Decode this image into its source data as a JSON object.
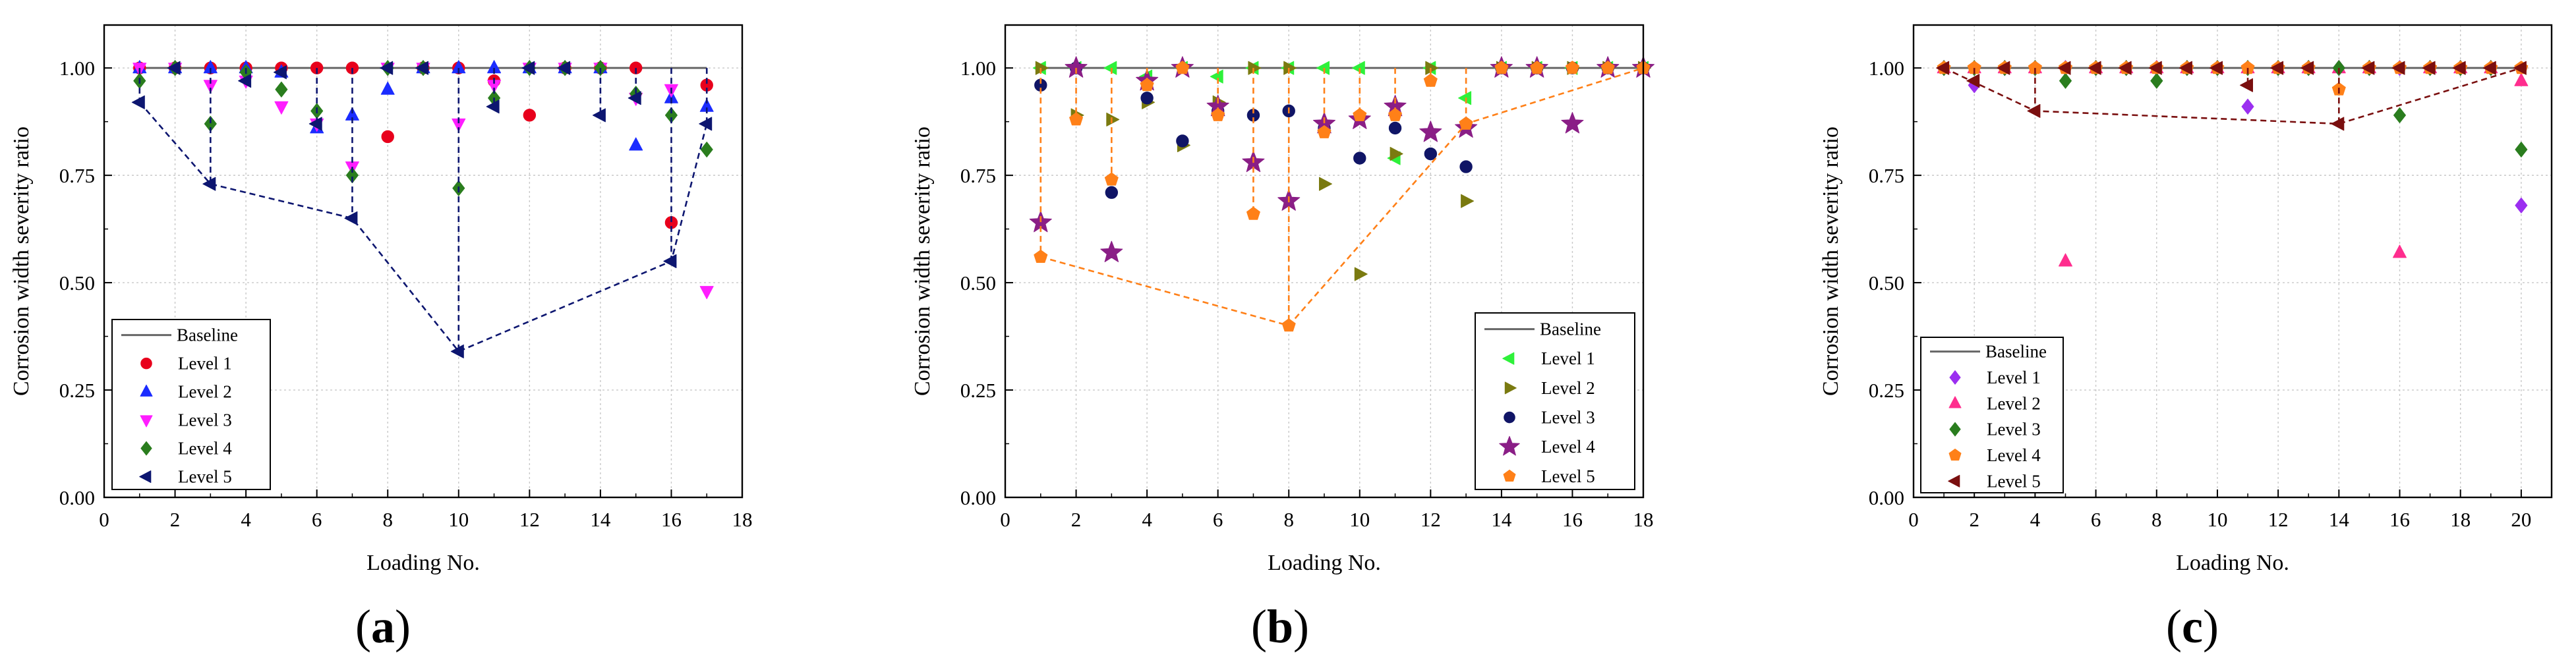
{
  "figure": {
    "panels": [
      "a",
      "b",
      "c"
    ]
  },
  "chart_data": [
    {
      "panel": "a",
      "type": "scatter",
      "xlabel": "Loading No.",
      "ylabel": "Corrosion width severity ratio",
      "xlim": [
        0,
        18
      ],
      "ylim": [
        0,
        1.1
      ],
      "xticks": [
        0,
        2,
        4,
        6,
        8,
        10,
        12,
        14,
        16,
        18
      ],
      "yticks": [
        0.0,
        0.25,
        0.5,
        0.75,
        1.0
      ],
      "grid": true,
      "legend_position": "bottom-left",
      "baseline": {
        "name": "Baseline",
        "value": 1.0,
        "x": [
          1,
          17
        ]
      },
      "series": [
        {
          "name": "Level 1",
          "marker": "circle",
          "color": "#e8001c",
          "dashed_drop": false,
          "x": [
            1,
            2,
            3,
            4,
            5,
            6,
            7,
            8,
            9,
            10,
            11,
            12,
            13,
            14,
            15,
            16,
            17
          ],
          "y": [
            1.0,
            1.0,
            1.0,
            1.0,
            1.0,
            1.0,
            1.0,
            0.84,
            1.0,
            1.0,
            0.97,
            0.89,
            1.0,
            1.0,
            1.0,
            0.64,
            0.96
          ]
        },
        {
          "name": "Level 2",
          "marker": "triangle-up",
          "color": "#1b2cff",
          "dashed_drop": false,
          "x": [
            1,
            2,
            3,
            4,
            5,
            6,
            7,
            8,
            9,
            10,
            11,
            12,
            13,
            14,
            15,
            16,
            17
          ],
          "y": [
            1.0,
            1.0,
            1.0,
            1.0,
            0.99,
            0.86,
            0.89,
            0.95,
            1.0,
            1.0,
            1.0,
            1.0,
            1.0,
            1.0,
            0.82,
            0.93,
            0.91
          ]
        },
        {
          "name": "Level 3",
          "marker": "triangle-down",
          "color": "#ff1dff",
          "dashed_drop": false,
          "x": [
            1,
            2,
            3,
            4,
            5,
            6,
            7,
            8,
            9,
            10,
            11,
            12,
            13,
            14,
            15,
            16,
            17
          ],
          "y": [
            1.0,
            1.0,
            0.96,
            0.97,
            0.91,
            0.87,
            0.77,
            1.0,
            1.0,
            0.87,
            0.96,
            1.0,
            1.0,
            1.0,
            0.93,
            0.95,
            0.48
          ]
        },
        {
          "name": "Level 4",
          "marker": "diamond",
          "color": "#2a7d1e",
          "dashed_drop": false,
          "x": [
            1,
            2,
            3,
            4,
            5,
            6,
            7,
            8,
            9,
            10,
            11,
            12,
            13,
            14,
            15,
            16,
            17
          ],
          "y": [
            0.97,
            1.0,
            0.87,
            0.99,
            0.95,
            0.9,
            0.75,
            1.0,
            1.0,
            0.72,
            0.93,
            1.0,
            1.0,
            1.0,
            0.94,
            0.89,
            0.81
          ]
        },
        {
          "name": "Level 5",
          "marker": "triangle-left",
          "color": "#0d1670",
          "dashed_drop": true,
          "x": [
            1,
            2,
            3,
            4,
            5,
            6,
            7,
            8,
            9,
            10,
            11,
            12,
            13,
            14,
            15,
            16,
            17
          ],
          "y": [
            0.92,
            1.0,
            0.73,
            0.97,
            0.99,
            0.87,
            0.65,
            1.0,
            1.0,
            0.34,
            0.91,
            1.0,
            1.0,
            0.89,
            0.93,
            0.55,
            0.87
          ],
          "envelope_x": [
            1,
            3,
            7,
            10,
            16,
            17
          ],
          "envelope_y": [
            0.92,
            0.73,
            0.65,
            0.34,
            0.55,
            0.87
          ]
        }
      ]
    },
    {
      "panel": "b",
      "type": "scatter",
      "xlabel": "Loading No.",
      "ylabel": "Corrosion width severity ratio",
      "xlim": [
        0,
        18
      ],
      "ylim": [
        0,
        1.1
      ],
      "xticks": [
        0,
        2,
        4,
        6,
        8,
        10,
        12,
        14,
        16,
        18
      ],
      "yticks": [
        0.0,
        0.25,
        0.5,
        0.75,
        1.0
      ],
      "grid": true,
      "legend_position": "bottom-right",
      "baseline": {
        "name": "Baseline",
        "value": 1.0,
        "x": [
          1,
          18
        ]
      },
      "series": [
        {
          "name": "Level 1",
          "marker": "triangle-left",
          "color": "#2ef13a",
          "dashed_drop": false,
          "x": [
            1,
            2,
            3,
            4,
            5,
            6,
            7,
            8,
            9,
            10,
            11,
            12,
            13,
            14,
            15,
            16,
            17,
            18
          ],
          "y": [
            1.0,
            1.0,
            1.0,
            0.98,
            1.0,
            0.98,
            1.0,
            1.0,
            1.0,
            1.0,
            0.79,
            1.0,
            0.93,
            1.0,
            1.0,
            1.0,
            1.0,
            1.0
          ]
        },
        {
          "name": "Level 2",
          "marker": "triangle-right",
          "color": "#7a7a10",
          "dashed_drop": false,
          "x": [
            1,
            2,
            3,
            4,
            5,
            6,
            7,
            8,
            9,
            10,
            11,
            12,
            13,
            14,
            15,
            16,
            17,
            18
          ],
          "y": [
            1.0,
            0.89,
            0.88,
            0.92,
            0.82,
            0.92,
            1.0,
            1.0,
            0.73,
            0.52,
            0.8,
            1.0,
            0.69,
            1.0,
            1.0,
            1.0,
            1.0,
            1.0
          ]
        },
        {
          "name": "Level 3",
          "marker": "circle",
          "color": "#101566",
          "dashed_drop": false,
          "x": [
            1,
            2,
            3,
            4,
            5,
            6,
            7,
            8,
            9,
            10,
            11,
            12,
            13,
            14,
            15,
            16,
            17,
            18
          ],
          "y": [
            0.96,
            1.0,
            0.71,
            0.93,
            0.83,
            0.9,
            0.89,
            0.9,
            0.86,
            0.79,
            0.86,
            0.8,
            0.77,
            1.0,
            1.0,
            1.0,
            1.0,
            1.0
          ]
        },
        {
          "name": "Level 4",
          "marker": "star",
          "color": "#8a1e86",
          "dashed_drop": false,
          "x": [
            1,
            2,
            3,
            4,
            5,
            6,
            7,
            8,
            9,
            10,
            11,
            12,
            13,
            14,
            15,
            16,
            17,
            18
          ],
          "y": [
            0.64,
            1.0,
            0.57,
            0.97,
            1.0,
            0.91,
            0.78,
            0.69,
            0.87,
            0.88,
            0.91,
            0.85,
            0.86,
            1.0,
            1.0,
            0.87,
            1.0,
            1.0
          ]
        },
        {
          "name": "Level 5",
          "marker": "pentagon",
          "color": "#ff8018",
          "dashed_drop": true,
          "x": [
            1,
            2,
            3,
            4,
            5,
            6,
            7,
            8,
            9,
            10,
            11,
            12,
            13,
            14,
            15,
            16,
            17,
            18
          ],
          "y": [
            0.56,
            0.88,
            0.74,
            0.96,
            1.0,
            0.89,
            0.66,
            0.4,
            0.85,
            0.89,
            0.89,
            0.97,
            0.87,
            1.0,
            1.0,
            1.0,
            1.0,
            1.0
          ],
          "envelope_x": [
            1,
            8,
            13,
            18
          ],
          "envelope_y": [
            0.56,
            0.4,
            0.87,
            1.0
          ]
        }
      ]
    },
    {
      "panel": "c",
      "type": "scatter",
      "xlabel": "Loading No.",
      "ylabel": "Corrosion width severity ratio",
      "xlim": [
        0,
        21
      ],
      "ylim": [
        0,
        1.1
      ],
      "xticks": [
        0,
        2,
        4,
        6,
        8,
        10,
        12,
        14,
        16,
        18,
        20
      ],
      "yticks": [
        0.0,
        0.25,
        0.5,
        0.75,
        1.0
      ],
      "grid": true,
      "legend_position": "bottom-left",
      "baseline": {
        "name": "Baseline",
        "value": 1.0,
        "x": [
          1,
          20
        ]
      },
      "series": [
        {
          "name": "Level 1",
          "marker": "diamond",
          "color": "#9b2ff0",
          "dashed_drop": false,
          "x": [
            1,
            2,
            3,
            4,
            5,
            6,
            7,
            8,
            9,
            10,
            11,
            12,
            13,
            14,
            15,
            16,
            17,
            18,
            19,
            20
          ],
          "y": [
            1.0,
            0.96,
            1.0,
            1.0,
            1.0,
            1.0,
            1.0,
            1.0,
            1.0,
            1.0,
            0.91,
            1.0,
            1.0,
            1.0,
            1.0,
            1.0,
            1.0,
            1.0,
            1.0,
            0.68
          ]
        },
        {
          "name": "Level 2",
          "marker": "triangle-up",
          "color": "#ff2d8e",
          "dashed_drop": false,
          "x": [
            1,
            2,
            3,
            4,
            5,
            6,
            7,
            8,
            9,
            10,
            11,
            12,
            13,
            14,
            15,
            16,
            17,
            18,
            19,
            20
          ],
          "y": [
            1.0,
            1.0,
            1.0,
            1.0,
            0.55,
            1.0,
            1.0,
            1.0,
            1.0,
            1.0,
            1.0,
            1.0,
            1.0,
            1.0,
            1.0,
            0.57,
            1.0,
            1.0,
            1.0,
            0.97
          ]
        },
        {
          "name": "Level 3",
          "marker": "diamond",
          "color": "#2a7d1e",
          "dashed_drop": false,
          "x": [
            1,
            2,
            3,
            4,
            5,
            6,
            7,
            8,
            9,
            10,
            11,
            12,
            13,
            14,
            15,
            16,
            17,
            18,
            19,
            20
          ],
          "y": [
            1.0,
            1.0,
            1.0,
            1.0,
            0.97,
            1.0,
            1.0,
            0.97,
            1.0,
            1.0,
            1.0,
            1.0,
            1.0,
            1.0,
            1.0,
            0.89,
            1.0,
            1.0,
            1.0,
            0.81
          ]
        },
        {
          "name": "Level 4",
          "marker": "pentagon",
          "color": "#ff8018",
          "dashed_drop": false,
          "x": [
            1,
            2,
            3,
            4,
            5,
            6,
            7,
            8,
            9,
            10,
            11,
            12,
            13,
            14,
            15,
            16,
            17,
            18,
            19,
            20
          ],
          "y": [
            1.0,
            1.0,
            1.0,
            1.0,
            1.0,
            1.0,
            1.0,
            1.0,
            1.0,
            1.0,
            1.0,
            1.0,
            1.0,
            0.95,
            1.0,
            1.0,
            1.0,
            1.0,
            1.0,
            1.0
          ]
        },
        {
          "name": "Level 5",
          "marker": "triangle-left",
          "color": "#7a0f0f",
          "dashed_drop": true,
          "x": [
            1,
            2,
            3,
            4,
            5,
            6,
            7,
            8,
            9,
            10,
            11,
            12,
            13,
            14,
            15,
            16,
            17,
            18,
            19,
            20
          ],
          "y": [
            1.0,
            0.97,
            1.0,
            0.9,
            1.0,
            1.0,
            1.0,
            1.0,
            1.0,
            1.0,
            0.96,
            1.0,
            1.0,
            0.87,
            1.0,
            1.0,
            1.0,
            1.0,
            1.0,
            1.0
          ],
          "envelope_x": [
            1,
            4,
            14,
            20
          ],
          "envelope_y": [
            1.0,
            0.9,
            0.87,
            1.0
          ]
        }
      ]
    }
  ]
}
